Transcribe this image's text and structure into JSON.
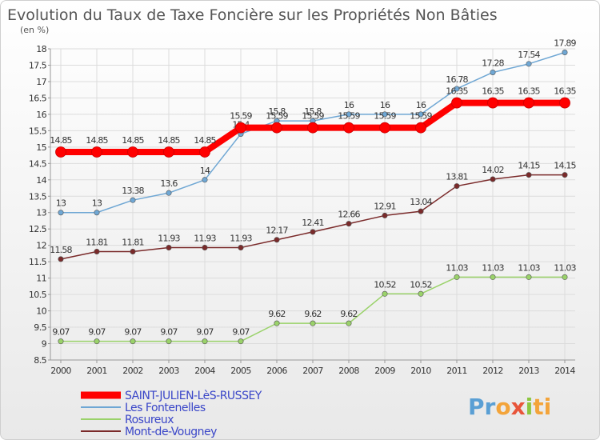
{
  "chart_data": {
    "type": "line",
    "title": "Evolution du Taux de Taxe Foncière sur les Propriétés Non Bâties",
    "unit_label": "(en %)",
    "xlabel": "",
    "ylabel": "",
    "ylim": [
      8.5,
      18
    ],
    "yticks": [
      "8.5",
      "9",
      "9.5",
      "10",
      "10.5",
      "11",
      "11.5",
      "12",
      "12.5",
      "13",
      "13.5",
      "14",
      "14.5",
      "15",
      "15.5",
      "16",
      "16.5",
      "17",
      "17.5",
      "18"
    ],
    "x": [
      "2000",
      "2001",
      "2002",
      "2003",
      "2004",
      "2005",
      "2006",
      "2007",
      "2008",
      "2009",
      "2010",
      "2011",
      "2012",
      "2013",
      "2014"
    ],
    "series": [
      {
        "name": "Mont-de-Vougney",
        "color": "#7a2a2a",
        "values": [
          11.58,
          11.81,
          11.81,
          11.93,
          11.93,
          11.93,
          12.17,
          12.41,
          12.66,
          12.91,
          13.04,
          13.81,
          14.02,
          14.15,
          14.15
        ],
        "labels": [
          "11.58",
          "11.81",
          "11.81",
          "11.93",
          "11.93",
          "11.93",
          "12.17",
          "12.41",
          "12.66",
          "12.91",
          "13.04",
          "13.81",
          "14.02",
          "14.15",
          "14.15"
        ]
      },
      {
        "name": "Rosureux",
        "color": "#9ad26a",
        "values": [
          9.07,
          9.07,
          9.07,
          9.07,
          9.07,
          9.07,
          9.62,
          9.62,
          9.62,
          10.52,
          10.52,
          11.03,
          11.03,
          11.03,
          11.03
        ],
        "labels": [
          "9.07",
          "9.07",
          "9.07",
          "9.07",
          "9.07",
          "9.07",
          "9.62",
          "9.62",
          "9.62",
          "10.52",
          "10.52",
          "11.03",
          "11.03",
          "11.03",
          "11.03"
        ]
      },
      {
        "name": "Les Fontenelles",
        "color": "#6fa7d4",
        "values": [
          13,
          13,
          13.38,
          13.6,
          14,
          15.4,
          15.8,
          15.8,
          16,
          16,
          16,
          16.78,
          17.28,
          17.54,
          17.89
        ],
        "labels": [
          "13",
          "13",
          "13.38",
          "13.6",
          "14",
          "15.4",
          "15.8",
          "15.8",
          "16",
          "16",
          "16",
          "16.78",
          "17.28",
          "17.54",
          "17.89"
        ]
      },
      {
        "name": "SAINT-JULIEN-LèS-RUSSEY",
        "color": "#ff0000",
        "values": [
          14.85,
          14.85,
          14.85,
          14.85,
          14.85,
          15.59,
          15.59,
          15.59,
          15.59,
          15.59,
          15.59,
          16.35,
          16.35,
          16.35,
          16.35
        ],
        "labels": [
          "14.85",
          "14.85",
          "14.85",
          "14.85",
          "14.85",
          "15.59",
          "15.59",
          "15.59",
          "15.59",
          "15.59",
          "15.59",
          "16.35",
          "16.35",
          "16.35",
          "16.35"
        ]
      }
    ],
    "legend_order": [
      "SAINT-JULIEN-LèS-RUSSEY",
      "Les Fontenelles",
      "Rosureux",
      "Mont-de-Vougney"
    ],
    "legend_position": "bottom-left",
    "grid": true
  },
  "brand": {
    "parts": [
      "Pr",
      "o",
      "x",
      "i",
      "ti"
    ]
  }
}
